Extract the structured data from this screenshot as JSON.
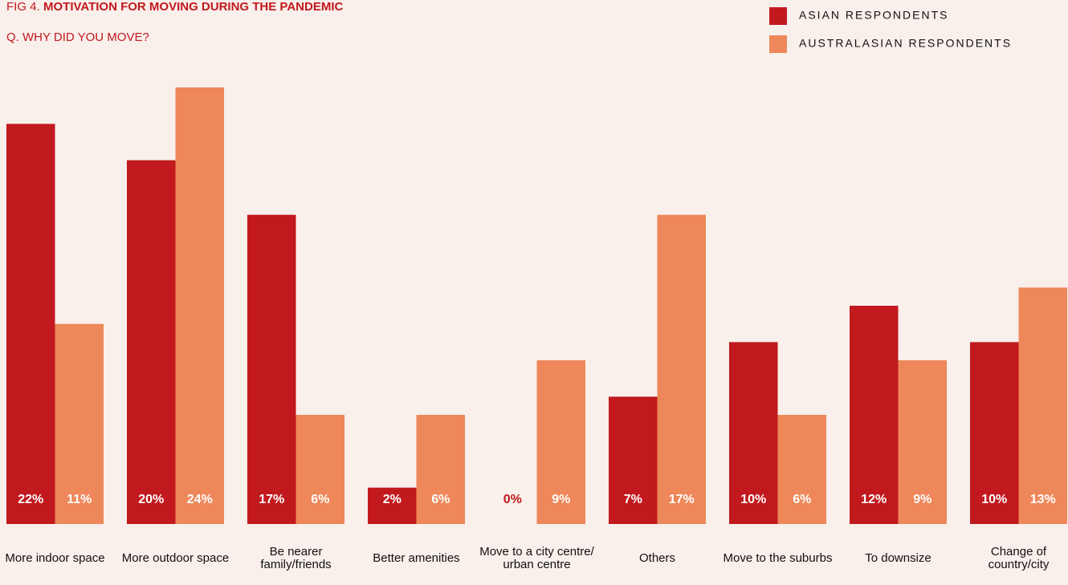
{
  "chart_data": {
    "type": "bar",
    "title_prefix": "FIG 4.",
    "title": "MOTIVATION FOR MOVING DURING THE PANDEMIC",
    "subtitle": "Q. WHY DID YOU MOVE?",
    "categories": [
      "More indoor space",
      "More outdoor space",
      "Be nearer family/friends",
      "Better amenities",
      "Move to a city centre/ urban centre",
      "Others",
      "Move to the suburbs",
      "To downsize",
      "Change of country/city"
    ],
    "series": [
      {
        "name": "ASIAN RESPONDENTS",
        "color": "#c1191e",
        "values": [
          22,
          20,
          17,
          2,
          0,
          7,
          10,
          12,
          10
        ],
        "value_labels": [
          "22%",
          "20%",
          "17%",
          "2%",
          "0%",
          "7%",
          "10%",
          "12%",
          "10%"
        ]
      },
      {
        "name": "AUSTRALASIAN RESPONDENTS",
        "color": "#ee8759",
        "values": [
          11,
          24,
          6,
          6,
          9,
          17,
          6,
          9,
          13
        ],
        "value_labels": [
          "11%",
          "24%",
          "6%",
          "6%",
          "9%",
          "17%",
          "6%",
          "9%",
          "13%"
        ]
      }
    ]
  }
}
